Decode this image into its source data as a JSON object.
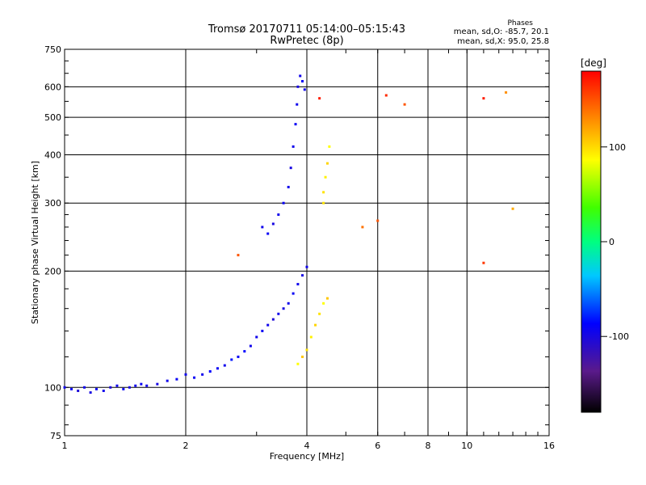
{
  "chart_data": {
    "type": "scatter",
    "title": "Tromsø 20170711 05:14:00–05:15:43",
    "subtitle": "RwPretec (8p)",
    "xlabel": "Frequency [MHz]",
    "ylabel": "Stationary phase Virtual Height [km]",
    "x_scale": "log",
    "y_scale": "log",
    "xlim": [
      1,
      16
    ],
    "ylim": [
      75,
      750
    ],
    "x_ticks": [
      1,
      2,
      4,
      6,
      8,
      10,
      16
    ],
    "y_ticks": [
      75,
      100,
      200,
      300,
      400,
      500,
      600,
      750
    ],
    "grid": true,
    "stats": {
      "heading": "Phases",
      "line_o": "mean, sd,O: -85.7, 20.1",
      "line_x": "mean, sd,X:  95.0, 25.8"
    },
    "colorbar": {
      "label": "[deg]",
      "ticks": [
        100,
        0,
        -100
      ],
      "range": [
        -180,
        180
      ]
    },
    "series": [
      {
        "points": [
          [
            1.0,
            100,
            -100
          ],
          [
            1.04,
            99,
            -95
          ],
          [
            1.08,
            98,
            -110
          ],
          [
            1.12,
            100,
            -100
          ],
          [
            1.16,
            97,
            -105
          ],
          [
            1.2,
            99,
            -95
          ],
          [
            1.25,
            98,
            -100
          ],
          [
            1.3,
            100,
            -110
          ],
          [
            1.35,
            101,
            -100
          ],
          [
            1.4,
            99,
            -95
          ],
          [
            1.45,
            100,
            -105
          ],
          [
            1.5,
            101,
            -100
          ],
          [
            1.55,
            102,
            -95
          ],
          [
            1.6,
            101,
            -100
          ],
          [
            1.7,
            102,
            -105
          ],
          [
            1.8,
            104,
            -100
          ],
          [
            1.9,
            105,
            -95
          ],
          [
            2.0,
            108,
            -100
          ],
          [
            2.1,
            106,
            -95
          ],
          [
            2.2,
            108,
            -100
          ],
          [
            2.3,
            110,
            -90
          ],
          [
            2.4,
            112,
            -95
          ],
          [
            2.5,
            114,
            -100
          ],
          [
            2.6,
            118,
            -85
          ],
          [
            2.7,
            120,
            -95
          ],
          [
            2.8,
            124,
            -90
          ],
          [
            2.9,
            128,
            -100
          ],
          [
            3.0,
            135,
            -100
          ],
          [
            3.1,
            140,
            -95
          ],
          [
            3.2,
            145,
            -100
          ],
          [
            3.3,
            150,
            -110
          ],
          [
            3.4,
            155,
            -100
          ],
          [
            3.5,
            160,
            -105
          ],
          [
            3.6,
            165,
            -100
          ],
          [
            3.7,
            175,
            -95
          ],
          [
            3.8,
            185,
            -100
          ],
          [
            3.9,
            195,
            -105
          ],
          [
            4.0,
            205,
            -100
          ]
        ]
      },
      {
        "points": [
          [
            3.1,
            260,
            -100
          ],
          [
            3.2,
            250,
            -95
          ],
          [
            3.3,
            265,
            -105
          ],
          [
            3.4,
            280,
            -100
          ],
          [
            3.5,
            300,
            -95
          ],
          [
            3.6,
            330,
            -100
          ],
          [
            3.65,
            370,
            -105
          ],
          [
            3.7,
            420,
            -100
          ],
          [
            3.75,
            480,
            -95
          ],
          [
            3.78,
            540,
            -100
          ],
          [
            3.8,
            600,
            -105
          ],
          [
            3.85,
            640,
            -100
          ],
          [
            3.9,
            620,
            -95
          ],
          [
            3.95,
            590,
            -100
          ]
        ]
      },
      {
        "points": [
          [
            3.8,
            115,
            90
          ],
          [
            3.9,
            120,
            110
          ],
          [
            4.0,
            125,
            100
          ],
          [
            4.1,
            135,
            95
          ],
          [
            4.2,
            145,
            105
          ],
          [
            4.3,
            155,
            100
          ],
          [
            4.4,
            165,
            90
          ],
          [
            4.5,
            170,
            110
          ],
          [
            4.4,
            320,
            100
          ],
          [
            4.45,
            350,
            95
          ],
          [
            4.5,
            380,
            105
          ],
          [
            4.55,
            420,
            90
          ],
          [
            4.4,
            300,
            100
          ]
        ]
      },
      {
        "points": [
          [
            2.7,
            220,
            150
          ],
          [
            4.3,
            560,
            170
          ],
          [
            6.3,
            570,
            165
          ],
          [
            7.0,
            540,
            150
          ],
          [
            11.0,
            560,
            170
          ],
          [
            11.0,
            210,
            160
          ],
          [
            12.5,
            580,
            130
          ],
          [
            13.0,
            290,
            120
          ],
          [
            5.5,
            260,
            140
          ],
          [
            6.0,
            270,
            150
          ]
        ]
      }
    ]
  }
}
